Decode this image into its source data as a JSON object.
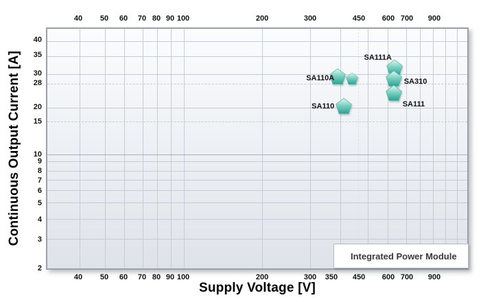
{
  "chart_data": {
    "type": "scatter",
    "xlabel": "Supply Voltage [V]",
    "ylabel": "Continuous Output Current [A]",
    "x_scale": "log",
    "y_scale": "log",
    "xlim_volts": [
      30,
      1200
    ],
    "ylim_amps": [
      2,
      46
    ],
    "grid": true,
    "legend": {
      "label": "Integrated Power Module",
      "position": "bottom-right"
    },
    "colors": {
      "marker_top": "#e3f7f2",
      "marker_mid": "#7fd3c4",
      "marker_bottom": "#2ca293",
      "marker_stroke": "#4fb8a7",
      "grid_line": "#c7ccd4",
      "plot_border": "#9aa1aa"
    },
    "series": [
      {
        "name": "Integrated Power Module",
        "marker": "pentagon",
        "points": [
          {
            "label": "SA110A",
            "supply_voltage_v": 400,
            "output_current_a": 30,
            "x_pct": 70.62,
            "y_pct": 20.68,
            "label_anchor": "left",
            "label_dx": -14,
            "label_dy": 0
          },
          {
            "label": "SA111A",
            "supply_voltage_v": 650,
            "output_current_a": 32,
            "x_pct": 82.63,
            "y_pct": 17.0,
            "label_anchor": "above",
            "label_dx": -24,
            "label_dy": -17
          },
          {
            "label": "SA310",
            "supply_voltage_v": 650,
            "output_current_a": 28,
            "x_pct": 82.47,
            "y_pct": 21.53,
            "label_anchor": "right",
            "label_dx": 15,
            "label_dy": 2
          },
          {
            "label": "SA110",
            "supply_voltage_v": 400,
            "output_current_a": 20,
            "x_pct": 70.62,
            "y_pct": 32.86,
            "label_anchor": "left",
            "label_dx": -14,
            "label_dy": -2
          },
          {
            "label": "SA111",
            "supply_voltage_v": 650,
            "output_current_a": 24,
            "x_pct": 82.47,
            "y_pct": 27.48,
            "label_anchor": "right",
            "label_dx": 13,
            "label_dy": 14
          }
        ]
      }
    ],
    "x_ticks_top": [
      {
        "label": "40",
        "pct": 7.63
      },
      {
        "label": "50",
        "pct": 13.8
      },
      {
        "label": "60",
        "pct": 18.34
      },
      {
        "label": "70",
        "pct": 22.73
      },
      {
        "label": "80",
        "pct": 26.14
      },
      {
        "label": "90",
        "pct": 29.38
      },
      {
        "label": "100",
        "pct": 32.47
      },
      {
        "label": "200",
        "pct": 51.14
      },
      {
        "label": "300",
        "pct": 62.5
      },
      {
        "label": "450",
        "pct": 74.03
      },
      {
        "label": "600",
        "pct": 81.0
      },
      {
        "label": "700",
        "pct": 85.39
      },
      {
        "label": "900",
        "pct": 91.88
      }
    ],
    "x_ticks_bottom": [
      {
        "label": "40",
        "pct": 7.63
      },
      {
        "label": "50",
        "pct": 13.8
      },
      {
        "label": "60",
        "pct": 18.34
      },
      {
        "label": "70",
        "pct": 22.73
      },
      {
        "label": "80",
        "pct": 26.14
      },
      {
        "label": "90",
        "pct": 29.38
      },
      {
        "label": "100",
        "pct": 32.47
      },
      {
        "label": "200",
        "pct": 51.14
      },
      {
        "label": "300",
        "pct": 62.5
      },
      {
        "label": "350",
        "pct": 67.53
      },
      {
        "label": "450",
        "pct": 74.03
      },
      {
        "label": "600",
        "pct": 81.0
      },
      {
        "label": "700",
        "pct": 85.39
      },
      {
        "label": "900",
        "pct": 91.88
      }
    ],
    "y_ticks": [
      {
        "label": "40",
        "pct": 5.1
      },
      {
        "label": "35",
        "pct": 11.33
      },
      {
        "label": "30",
        "pct": 18.98
      },
      {
        "label": "28",
        "pct": 22.95
      },
      {
        "label": "20",
        "pct": 32.86
      },
      {
        "label": "15",
        "pct": 38.81
      },
      {
        "label": "10",
        "pct": 52.41
      },
      {
        "label": "9",
        "pct": 55.24
      },
      {
        "label": "8",
        "pct": 59.21
      },
      {
        "label": "7",
        "pct": 63.17
      },
      {
        "label": "6",
        "pct": 67.42
      },
      {
        "label": "5",
        "pct": 72.52
      },
      {
        "label": "4",
        "pct": 79.32
      },
      {
        "label": "3",
        "pct": 87.54
      },
      {
        "label": "2",
        "pct": 99.43
      }
    ],
    "x_gridlines": [
      {
        "v": 40,
        "pct": 7.63
      },
      {
        "v": 50,
        "pct": 13.8
      },
      {
        "v": 60,
        "pct": 18.34
      },
      {
        "v": 70,
        "pct": 22.73
      },
      {
        "v": 80,
        "pct": 26.14
      },
      {
        "v": 90,
        "pct": 29.38
      },
      {
        "v": 100,
        "pct": 32.47
      },
      {
        "v": 200,
        "pct": 51.14
      },
      {
        "v": 300,
        "pct": 62.5
      },
      {
        "v": 400,
        "pct": 69.81
      },
      {
        "v": 500,
        "pct": 76.3
      },
      {
        "v": 600,
        "pct": 81.0
      },
      {
        "v": 700,
        "pct": 85.39
      },
      {
        "v": 800,
        "pct": 88.8
      },
      {
        "v": 900,
        "pct": 91.88
      },
      {
        "v": 1000,
        "pct": 94.8
      },
      {
        "v": 1100,
        "pct": 97.56
      }
    ],
    "x_dashed_gridlines": [
      {
        "v": 450,
        "pct": 74.03
      }
    ],
    "y_gridlines": [
      {
        "v": 40,
        "pct": 5.1
      },
      {
        "v": 35,
        "pct": 11.33
      },
      {
        "v": 30,
        "pct": 18.98
      },
      {
        "v": 20,
        "pct": 32.86
      },
      {
        "v": 10,
        "pct": 52.41,
        "strong": true
      },
      {
        "v": 9,
        "pct": 55.24
      },
      {
        "v": 8,
        "pct": 59.21
      },
      {
        "v": 7,
        "pct": 63.17
      },
      {
        "v": 6,
        "pct": 67.42
      },
      {
        "v": 5,
        "pct": 72.52
      },
      {
        "v": 4,
        "pct": 79.32
      },
      {
        "v": 3,
        "pct": 87.54
      }
    ],
    "y_dashed_gridlines": [
      {
        "v": 28,
        "pct": 22.95
      },
      {
        "v": 15,
        "pct": 38.81
      }
    ]
  }
}
